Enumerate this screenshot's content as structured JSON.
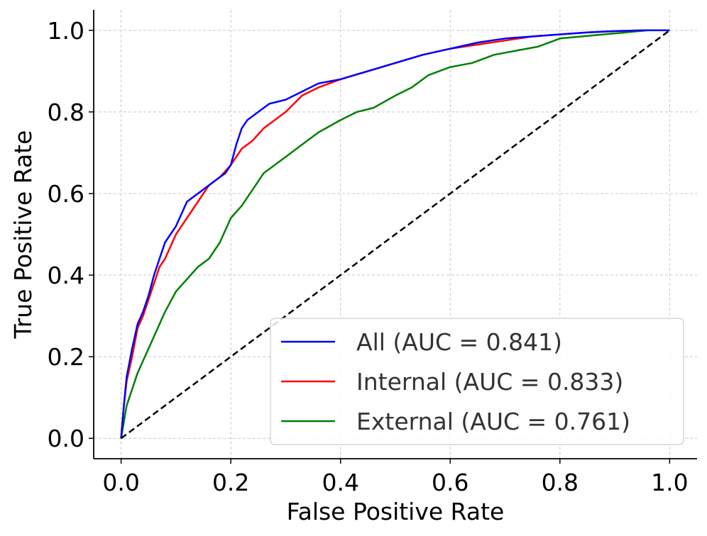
{
  "chart_data": {
    "type": "line",
    "title": "",
    "xlabel": "False Positive Rate",
    "ylabel": "True Positive Rate",
    "xlim": [
      -0.05,
      1.05
    ],
    "ylim": [
      -0.05,
      1.05
    ],
    "xticks": [
      "0.0",
      "0.2",
      "0.4",
      "0.6",
      "0.8",
      "1.0"
    ],
    "yticks": [
      "0.0",
      "0.2",
      "0.4",
      "0.6",
      "0.8",
      "1.0"
    ],
    "grid": true,
    "legend_position": "lower-right",
    "series": [
      {
        "name": "All (AUC = 0.841)",
        "color": "#0000ff",
        "x": [
          0.0,
          0.005,
          0.01,
          0.02,
          0.03,
          0.04,
          0.05,
          0.06,
          0.07,
          0.08,
          0.09,
          0.1,
          0.12,
          0.14,
          0.16,
          0.18,
          0.19,
          0.2,
          0.21,
          0.22,
          0.23,
          0.25,
          0.27,
          0.3,
          0.33,
          0.36,
          0.4,
          0.45,
          0.5,
          0.55,
          0.6,
          0.65,
          0.7,
          0.75,
          0.8,
          0.85,
          0.9,
          0.95,
          1.0
        ],
        "y": [
          0.0,
          0.08,
          0.15,
          0.22,
          0.28,
          0.31,
          0.35,
          0.4,
          0.44,
          0.48,
          0.5,
          0.52,
          0.58,
          0.6,
          0.62,
          0.64,
          0.65,
          0.67,
          0.72,
          0.76,
          0.78,
          0.8,
          0.82,
          0.83,
          0.85,
          0.87,
          0.88,
          0.9,
          0.92,
          0.94,
          0.955,
          0.97,
          0.98,
          0.985,
          0.99,
          0.995,
          0.998,
          1.0,
          1.0
        ]
      },
      {
        "name": "Internal (AUC = 0.833)",
        "color": "#ff0000",
        "x": [
          0.0,
          0.005,
          0.01,
          0.02,
          0.03,
          0.04,
          0.05,
          0.06,
          0.07,
          0.08,
          0.09,
          0.1,
          0.12,
          0.14,
          0.16,
          0.18,
          0.2,
          0.22,
          0.24,
          0.26,
          0.28,
          0.3,
          0.33,
          0.36,
          0.4,
          0.45,
          0.5,
          0.55,
          0.6,
          0.65,
          0.7,
          0.75,
          0.8,
          0.85,
          0.9,
          0.95,
          1.0
        ],
        "y": [
          0.0,
          0.08,
          0.14,
          0.2,
          0.27,
          0.3,
          0.34,
          0.38,
          0.42,
          0.44,
          0.47,
          0.5,
          0.54,
          0.58,
          0.62,
          0.64,
          0.67,
          0.71,
          0.73,
          0.76,
          0.78,
          0.8,
          0.84,
          0.86,
          0.88,
          0.9,
          0.92,
          0.94,
          0.955,
          0.965,
          0.975,
          0.985,
          0.99,
          0.995,
          0.998,
          1.0,
          1.0
        ]
      },
      {
        "name": "External (AUC = 0.761)",
        "color": "#008000",
        "x": [
          0.0,
          0.005,
          0.01,
          0.02,
          0.03,
          0.04,
          0.05,
          0.06,
          0.08,
          0.1,
          0.12,
          0.14,
          0.16,
          0.18,
          0.2,
          0.22,
          0.24,
          0.26,
          0.28,
          0.3,
          0.33,
          0.36,
          0.4,
          0.43,
          0.46,
          0.5,
          0.53,
          0.56,
          0.6,
          0.64,
          0.68,
          0.72,
          0.76,
          0.8,
          0.84,
          0.88,
          0.92,
          0.96,
          1.0
        ],
        "y": [
          0.0,
          0.04,
          0.08,
          0.12,
          0.16,
          0.19,
          0.22,
          0.25,
          0.31,
          0.36,
          0.39,
          0.42,
          0.44,
          0.48,
          0.54,
          0.57,
          0.61,
          0.65,
          0.67,
          0.69,
          0.72,
          0.75,
          0.78,
          0.8,
          0.81,
          0.84,
          0.86,
          0.89,
          0.91,
          0.92,
          0.94,
          0.95,
          0.96,
          0.98,
          0.985,
          0.99,
          0.995,
          1.0,
          1.0
        ]
      },
      {
        "name": "",
        "color": "#000000",
        "dashed": true,
        "x": [
          0.0,
          1.0
        ],
        "y": [
          0.0,
          1.0
        ]
      }
    ]
  }
}
